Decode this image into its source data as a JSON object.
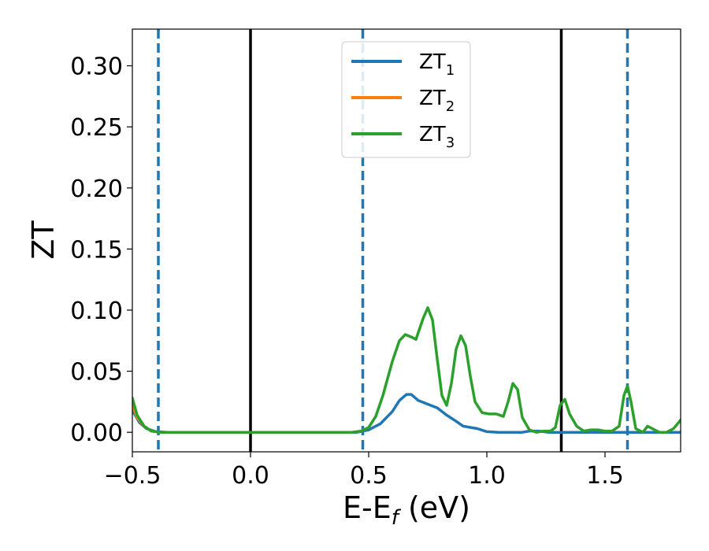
{
  "chart_data": {
    "type": "line",
    "xlabel": {
      "main": "E-E",
      "sub": "f",
      "tail": " (eV)"
    },
    "ylabel": "ZT",
    "xlim": [
      -0.5,
      1.82
    ],
    "ylim": [
      -0.016,
      0.33
    ],
    "grid": false,
    "legend_position": "top-center",
    "x_ticks": [
      {
        "value": -0.5,
        "label": "−0.5"
      },
      {
        "value": 0.0,
        "label": "0.0"
      },
      {
        "value": 0.5,
        "label": "0.5"
      },
      {
        "value": 1.0,
        "label": "1.0"
      },
      {
        "value": 1.5,
        "label": "1.5"
      }
    ],
    "y_ticks": [
      {
        "value": 0.0,
        "label": "0.00"
      },
      {
        "value": 0.05,
        "label": "0.05"
      },
      {
        "value": 0.1,
        "label": "0.10"
      },
      {
        "value": 0.15,
        "label": "0.15"
      },
      {
        "value": 0.2,
        "label": "0.20"
      },
      {
        "value": 0.25,
        "label": "0.25"
      },
      {
        "value": 0.3,
        "label": "0.30"
      }
    ],
    "vlines": [
      {
        "x": -0.39,
        "style": "dashed",
        "color": "#1f77b4"
      },
      {
        "x": 0.0,
        "style": "solid",
        "color": "#000000"
      },
      {
        "x": 0.475,
        "style": "dashed",
        "color": "#1f77b4"
      },
      {
        "x": 1.315,
        "style": "solid",
        "color": "#000000"
      },
      {
        "x": 1.595,
        "style": "dashed",
        "color": "#1f77b4"
      }
    ],
    "series": [
      {
        "name": "ZT",
        "sub": "1",
        "color": "#1f77b4",
        "points": [
          [
            -0.5,
            0.018
          ],
          [
            -0.47,
            0.008
          ],
          [
            -0.44,
            0.003
          ],
          [
            -0.4,
            0.0005
          ],
          [
            -0.35,
            0.0
          ],
          [
            0.0,
            0.0
          ],
          [
            0.45,
            0.0
          ],
          [
            0.5,
            0.002
          ],
          [
            0.55,
            0.007
          ],
          [
            0.6,
            0.017
          ],
          [
            0.63,
            0.026
          ],
          [
            0.66,
            0.031
          ],
          [
            0.68,
            0.031
          ],
          [
            0.71,
            0.026
          ],
          [
            0.75,
            0.023
          ],
          [
            0.79,
            0.02
          ],
          [
            0.83,
            0.014
          ],
          [
            0.87,
            0.009
          ],
          [
            0.9,
            0.005
          ],
          [
            0.93,
            0.004
          ],
          [
            0.96,
            0.003
          ],
          [
            1.0,
            0.0005
          ],
          [
            1.05,
            0.0
          ],
          [
            1.15,
            0.0
          ],
          [
            1.18,
            0.001
          ],
          [
            1.22,
            0.001
          ],
          [
            1.26,
            0.0
          ],
          [
            1.3,
            0.0
          ],
          [
            1.35,
            0.0
          ],
          [
            1.82,
            0.0
          ]
        ]
      },
      {
        "name": "ZT",
        "sub": "2",
        "color": "#ff7f0e",
        "points": [
          [
            -0.5,
            0.022
          ],
          [
            -0.48,
            0.012
          ],
          [
            -0.45,
            0.005
          ],
          [
            -0.42,
            0.001
          ],
          [
            -0.38,
            0.0
          ],
          [
            0.0,
            0.0
          ],
          [
            0.43,
            0.0
          ],
          [
            0.47,
            0.001
          ],
          [
            0.5,
            0.004
          ]
        ]
      },
      {
        "name": "ZT",
        "sub": "3",
        "color": "#2ca02c",
        "points": [
          [
            -0.5,
            0.028
          ],
          [
            -0.48,
            0.014
          ],
          [
            -0.45,
            0.005
          ],
          [
            -0.42,
            0.001
          ],
          [
            -0.38,
            0.0
          ],
          [
            0.0,
            0.0
          ],
          [
            0.43,
            0.0
          ],
          [
            0.47,
            0.001
          ],
          [
            0.5,
            0.004
          ],
          [
            0.53,
            0.013
          ],
          [
            0.56,
            0.03
          ],
          [
            0.6,
            0.058
          ],
          [
            0.63,
            0.075
          ],
          [
            0.655,
            0.08
          ],
          [
            0.68,
            0.078
          ],
          [
            0.7,
            0.076
          ],
          [
            0.73,
            0.093
          ],
          [
            0.75,
            0.102
          ],
          [
            0.77,
            0.092
          ],
          [
            0.79,
            0.06
          ],
          [
            0.81,
            0.03
          ],
          [
            0.83,
            0.022
          ],
          [
            0.85,
            0.04
          ],
          [
            0.87,
            0.068
          ],
          [
            0.89,
            0.079
          ],
          [
            0.91,
            0.071
          ],
          [
            0.93,
            0.046
          ],
          [
            0.95,
            0.025
          ],
          [
            0.98,
            0.016
          ],
          [
            1.01,
            0.015
          ],
          [
            1.04,
            0.015
          ],
          [
            1.07,
            0.013
          ],
          [
            1.09,
            0.025
          ],
          [
            1.11,
            0.04
          ],
          [
            1.13,
            0.035
          ],
          [
            1.15,
            0.012
          ],
          [
            1.18,
            0.002
          ],
          [
            1.21,
            0.0
          ],
          [
            1.24,
            0.001
          ],
          [
            1.27,
            0.001
          ],
          [
            1.29,
            0.004
          ],
          [
            1.31,
            0.022
          ],
          [
            1.33,
            0.027
          ],
          [
            1.35,
            0.015
          ],
          [
            1.38,
            0.005
          ],
          [
            1.41,
            0.001
          ],
          [
            1.44,
            0.002
          ],
          [
            1.47,
            0.002
          ],
          [
            1.5,
            0.001
          ],
          [
            1.53,
            0.001
          ],
          [
            1.56,
            0.005
          ],
          [
            1.58,
            0.03
          ],
          [
            1.595,
            0.038
          ],
          [
            1.61,
            0.025
          ],
          [
            1.63,
            0.003
          ],
          [
            1.66,
            0.0
          ],
          [
            1.68,
            0.005
          ],
          [
            1.7,
            0.003
          ],
          [
            1.73,
            0.0
          ],
          [
            1.76,
            0.0
          ],
          [
            1.79,
            0.003
          ],
          [
            1.82,
            0.01
          ]
        ]
      }
    ]
  }
}
